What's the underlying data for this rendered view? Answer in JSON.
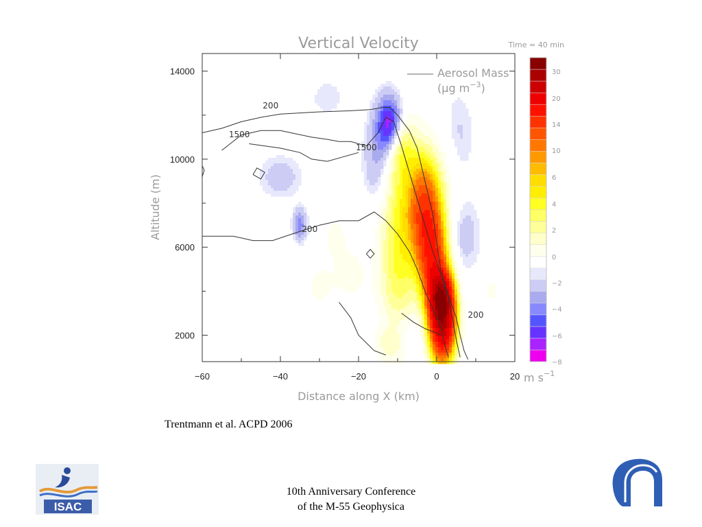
{
  "chart_data": {
    "type": "heatmap",
    "title": "Vertical Velocity",
    "time_label": "Time = 40 min",
    "xlabel": "Distance along X (km)",
    "ylabel": "Altitude (m)",
    "xlim": [
      -60,
      20
    ],
    "ylim": [
      800,
      14800
    ],
    "x_ticks": [
      -60,
      -40,
      -20,
      0,
      20
    ],
    "x_tick_labels": [
      "−60",
      "−40",
      "−20",
      "0",
      "20"
    ],
    "y_ticks": [
      2000,
      6000,
      10000,
      14000
    ],
    "y_tick_labels": [
      "2000",
      "6000",
      "10000",
      "14000"
    ],
    "legend": {
      "line_label": "Aerosol Mass",
      "unit_prefix": "(",
      "unit_mu": "μ",
      "unit_rest": "g m",
      "unit_exp": "−3",
      "unit_suffix": ")"
    },
    "contour_labels": [
      {
        "text": "200",
        "x": -42.5,
        "y": 12300
      },
      {
        "text": "1500",
        "x": -50.5,
        "y": 11000
      },
      {
        "text": "1500",
        "x": -18,
        "y": 10400
      },
      {
        "text": "200",
        "x": -32.5,
        "y": 6700
      },
      {
        "text": "200",
        "x": 10,
        "y": 2800
      }
    ],
    "contours": [
      {
        "level": 200,
        "points": [
          [
            -60,
            11200
          ],
          [
            -55,
            11400
          ],
          [
            -50,
            11700
          ],
          [
            -45,
            11900
          ],
          [
            -40,
            12050
          ],
          [
            -30,
            12150
          ],
          [
            -22,
            12200
          ],
          [
            -17,
            12250
          ],
          [
            -14,
            12350
          ],
          [
            -12,
            12350
          ],
          [
            -10,
            12000
          ],
          [
            -7,
            11300
          ],
          [
            -5,
            10500
          ],
          [
            -3,
            9000
          ],
          [
            -1,
            7500
          ],
          [
            0,
            6200
          ],
          [
            1,
            5000
          ],
          [
            3,
            3800
          ],
          [
            5,
            2800
          ],
          [
            6,
            2000
          ],
          [
            7,
            1300
          ],
          [
            8,
            900
          ]
        ]
      },
      {
        "level": 1500,
        "points": [
          [
            -55,
            10400
          ],
          [
            -50,
            11100
          ],
          [
            -45,
            11300
          ],
          [
            -40,
            11300
          ],
          [
            -32,
            11000
          ],
          [
            -28,
            10900
          ],
          [
            -25,
            10800
          ],
          [
            -22,
            10800
          ],
          [
            -18,
            10600
          ],
          [
            -15,
            11200
          ],
          [
            -13,
            11900
          ],
          [
            -11,
            11700
          ],
          [
            -9,
            10600
          ],
          [
            -7,
            9400
          ],
          [
            -5,
            8200
          ],
          [
            -3,
            7000
          ],
          [
            -1,
            5800
          ],
          [
            1,
            4800
          ],
          [
            3,
            3700
          ],
          [
            4,
            2800
          ],
          [
            5,
            1800
          ],
          [
            6,
            1000
          ]
        ]
      },
      {
        "level": 1500,
        "points": [
          [
            -48,
            10700
          ],
          [
            -40,
            10500
          ],
          [
            -35,
            10300
          ],
          [
            -32,
            10000
          ],
          [
            -28,
            9900
          ],
          [
            -24,
            10100
          ],
          [
            -20,
            10300
          ]
        ]
      },
      {
        "level": 200,
        "points": [
          [
            -60,
            6500
          ],
          [
            -52,
            6500
          ],
          [
            -47,
            6300
          ],
          [
            -42,
            6300
          ],
          [
            -37,
            6600
          ],
          [
            -30,
            7000
          ],
          [
            -25,
            7200
          ],
          [
            -20,
            7200
          ],
          [
            -16,
            7600
          ],
          [
            -13,
            7200
          ],
          [
            -10,
            6600
          ],
          [
            -7,
            5800
          ],
          [
            -5,
            5000
          ],
          [
            -3,
            4000
          ],
          [
            -1,
            3200
          ],
          [
            1,
            2400
          ],
          [
            2,
            1600
          ],
          [
            3,
            1000
          ]
        ]
      },
      {
        "level": 200,
        "points": [
          [
            -25,
            3500
          ],
          [
            -22,
            2800
          ],
          [
            -20,
            2000
          ],
          [
            -16,
            1300
          ],
          [
            -13,
            1100
          ]
        ]
      },
      {
        "level": 200,
        "points": [
          [
            -9,
            3000
          ],
          [
            -6,
            2600
          ],
          [
            -3,
            2300
          ],
          [
            0,
            2100
          ],
          [
            1,
            2000
          ]
        ]
      },
      {
        "level": 200,
        "points": [
          [
            -60,
            9200
          ],
          [
            -59.5,
            9500
          ],
          [
            -60,
            9700
          ]
        ]
      },
      {
        "level": 200,
        "points": [
          [
            -47,
            9300
          ],
          [
            -46,
            9600
          ],
          [
            -44,
            9400
          ],
          [
            -45,
            9100
          ],
          [
            -47,
            9300
          ]
        ]
      },
      {
        "level": 200,
        "points": [
          [
            -18,
            5700
          ],
          [
            -17,
            5900
          ],
          [
            -16,
            5700
          ],
          [
            -17,
            5500
          ],
          [
            -18,
            5700
          ]
        ]
      }
    ],
    "colorbar": {
      "unit_text": "m s",
      "unit_exp": "−1",
      "levels": [
        -8,
        -7,
        -6,
        -5,
        -4,
        -3,
        -2,
        -1,
        0,
        1,
        2,
        3,
        4,
        5,
        6,
        7,
        8,
        9,
        10,
        12,
        14,
        17,
        20,
        25,
        30,
        35
      ],
      "labels": [
        "30",
        "20",
        "14",
        "10",
        "6",
        "4",
        "2",
        "0",
        "−2",
        "−4",
        "−6",
        "−8"
      ],
      "label_values": [
        30,
        20,
        14,
        10,
        6,
        4,
        2,
        0,
        -2,
        -4,
        -6,
        -8
      ],
      "colors": [
        "#ee00ee",
        "#aa22ff",
        "#6633ff",
        "#5555ff",
        "#8888ff",
        "#aaaaee",
        "#ccccf5",
        "#e8e8fc",
        "#ffffff",
        "#ffffee",
        "#ffffcc",
        "#ffff99",
        "#ffff66",
        "#ffff22",
        "#ffee00",
        "#ffdd00",
        "#ffbb00",
        "#ff9900",
        "#ff7700",
        "#ff5500",
        "#ff3300",
        "#ff1100",
        "#ee0000",
        "#cc0000",
        "#aa0000",
        "#880000"
      ]
    },
    "fields": [
      {
        "x": -12,
        "y": 11600,
        "sx": 2.2,
        "sy": 900,
        "w": -7,
        "rot": 0
      },
      {
        "x": -15,
        "y": 10000,
        "sx": 2.5,
        "sy": 1400,
        "w": -2.5,
        "rot": 0
      },
      {
        "x": -35,
        "y": 7000,
        "sx": 1.2,
        "sy": 500,
        "w": -3.5,
        "rot": 0
      },
      {
        "x": -40,
        "y": 9200,
        "sx": 4,
        "sy": 700,
        "w": -1.5,
        "rot": 0
      },
      {
        "x": -10,
        "y": 2000,
        "sx": 4,
        "sy": 700,
        "w": -2,
        "rot": 0
      },
      {
        "x": -28,
        "y": 12800,
        "sx": 3,
        "sy": 600,
        "w": -1,
        "rot": 0
      },
      {
        "x": 7,
        "y": 6500,
        "sx": 3,
        "sy": 1200,
        "w": -1.5,
        "rot": 0
      },
      {
        "x": 5,
        "y": 11000,
        "sx": 3,
        "sy": 1500,
        "w": -1.5,
        "rot": 0
      },
      {
        "x": -3,
        "y": 7800,
        "sx": 2.8,
        "sy": 1600,
        "w": 13,
        "rot": 0
      },
      {
        "x": -1,
        "y": 5500,
        "sx": 2.5,
        "sy": 1400,
        "w": 14,
        "rot": 0
      },
      {
        "x": 1.5,
        "y": 2600,
        "sx": 2.2,
        "sy": 1200,
        "w": 28,
        "rot": 0
      },
      {
        "x": 1,
        "y": 3800,
        "sx": 2,
        "sy": 800,
        "w": 18,
        "rot": 0
      },
      {
        "x": -9,
        "y": 8000,
        "sx": 3.5,
        "sy": 2400,
        "w": 4,
        "rot": 0
      },
      {
        "x": -10,
        "y": 4500,
        "sx": 3.5,
        "sy": 2200,
        "w": 3.5,
        "rot": 0
      },
      {
        "x": -9,
        "y": 10500,
        "sx": 2.5,
        "sy": 900,
        "w": 3,
        "rot": 0
      },
      {
        "x": -22,
        "y": 4800,
        "sx": 3,
        "sy": 900,
        "w": 1.5,
        "rot": 0
      },
      {
        "x": -30,
        "y": 4200,
        "sx": 3,
        "sy": 1000,
        "w": 1.2,
        "rot": 0
      },
      {
        "x": -26,
        "y": 6500,
        "sx": 2,
        "sy": 600,
        "w": 1.5,
        "rot": 0
      },
      {
        "x": -12,
        "y": 1700,
        "sx": 3,
        "sy": 600,
        "w": 3,
        "rot": 0
      },
      {
        "x": 14,
        "y": 4000,
        "sx": 2,
        "sy": 600,
        "w": 1.2,
        "rot": 0
      },
      {
        "x": 3,
        "y": 9500,
        "sx": 2.5,
        "sy": 1800,
        "w": 1.2,
        "rot": 0
      }
    ]
  },
  "citation": "Trentmann et al. ACPD 2006",
  "footer": {
    "line1": "10th Anniversary Conference",
    "line2": "of the M-55 Geophysica"
  },
  "logos": {
    "left_text": "ISAC",
    "left_colors": [
      "#2b4a9a",
      "#e39a3a",
      "#3d6fc4"
    ],
    "right_color": "#2f5fb5"
  }
}
